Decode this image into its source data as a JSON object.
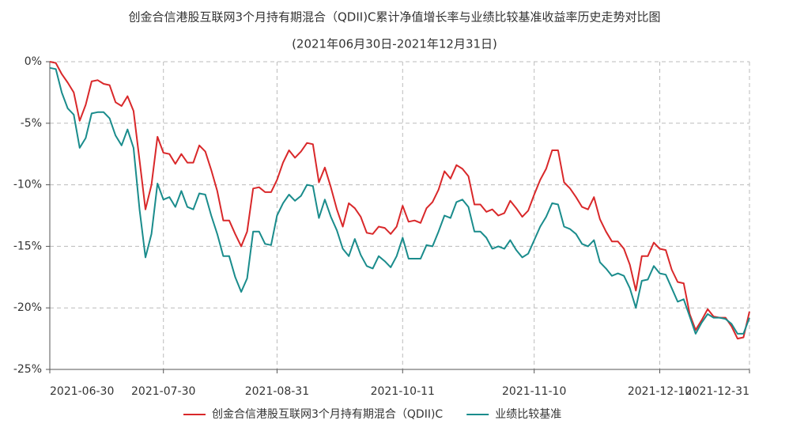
{
  "chart_data": {
    "type": "line",
    "title": "创金合信港股互联网3个月持有期混合（QDII)C累计净值增长率与业绩比较基准收益率历史走势对比图",
    "subtitle": "(2021年06月30日-2021年12月31日)",
    "categories": [
      "2021-06-30",
      null,
      null,
      null,
      null,
      null,
      null,
      null,
      null,
      null,
      null,
      null,
      null,
      null,
      null,
      null,
      null,
      null,
      null,
      "2021-07-30",
      null,
      null,
      null,
      null,
      null,
      null,
      null,
      null,
      null,
      null,
      null,
      null,
      null,
      null,
      null,
      null,
      null,
      null,
      "2021-08-31",
      null,
      null,
      null,
      null,
      null,
      null,
      null,
      null,
      null,
      null,
      null,
      null,
      null,
      null,
      null,
      null,
      null,
      null,
      null,
      null,
      "2021-10-11",
      null,
      null,
      null,
      null,
      null,
      null,
      null,
      null,
      null,
      null,
      null,
      null,
      null,
      null,
      null,
      null,
      null,
      null,
      null,
      null,
      null,
      "2021-11-10",
      null,
      null,
      null,
      null,
      null,
      null,
      null,
      null,
      null,
      null,
      null,
      null,
      null,
      null,
      null,
      null,
      null,
      null,
      null,
      null,
      "2021-12-10",
      null,
      null,
      null,
      null,
      null,
      null,
      null,
      null,
      null,
      null,
      null,
      null,
      null,
      null,
      "2021-12-31"
    ],
    "series": [
      {
        "name": "创金合信港股互联网3个月持有期混合（QDII)C",
        "color": "#d9282a",
        "values": [
          0,
          -0.1,
          -1,
          -1.7,
          -2.5,
          -4.8,
          -3.5,
          -1.6,
          -1.5,
          -1.8,
          -1.9,
          -3.3,
          -3.6,
          -2.8,
          -4,
          -8,
          -12,
          -10,
          -6.1,
          -7.4,
          -7.5,
          -8.3,
          -7.5,
          -8.2,
          -8.2,
          -6.8,
          -7.3,
          -8.8,
          -10.5,
          -12.9,
          -12.9,
          -14,
          -15,
          -13.8,
          -10.3,
          -10.2,
          -10.6,
          -10.6,
          -9.6,
          -8.2,
          -7.2,
          -7.8,
          -7.3,
          -6.6,
          -6.7,
          -9.8,
          -8.6,
          -10.2,
          -12,
          -13.4,
          -11.5,
          -11.9,
          -12.6,
          -13.9,
          -14,
          -13.4,
          -13.5,
          -14,
          -13.4,
          -11.7,
          -13,
          -12.9,
          -13.1,
          -11.9,
          -11.4,
          -10.4,
          -8.9,
          -9.5,
          -8.4,
          -8.7,
          -9.3,
          -11.6,
          -11.6,
          -12.2,
          -12,
          -12.5,
          -12.3,
          -11.3,
          -11.9,
          -12.6,
          -12.1,
          -10.8,
          -9.6,
          -8.7,
          -7.2,
          -7.2,
          -9.8,
          -10.3,
          -11,
          -11.8,
          -12,
          -11,
          -12.8,
          -13.8,
          -14.6,
          -14.6,
          -15.2,
          -16.5,
          -18.6,
          -15.8,
          -15.8,
          -14.7,
          -15.2,
          -15.3,
          -16.9,
          -17.9,
          -18,
          -20.5,
          -21.8,
          -21,
          -20.1,
          -20.7,
          -20.8,
          -20.8,
          -21.5,
          -22.5,
          -22.4,
          -20.3
        ]
      },
      {
        "name": "业绩比较基准",
        "color": "#1a8c8c",
        "values": [
          -0.5,
          -0.6,
          -2.5,
          -3.8,
          -4.3,
          -7,
          -6.2,
          -4.2,
          -4.1,
          -4.1,
          -4.6,
          -6,
          -6.8,
          -5.5,
          -7,
          -12,
          -15.9,
          -14,
          -9.9,
          -11.2,
          -11,
          -11.8,
          -10.5,
          -11.8,
          -12,
          -10.7,
          -10.8,
          -12.5,
          -14,
          -15.8,
          -15.8,
          -17.5,
          -18.7,
          -17.6,
          -13.8,
          -13.8,
          -14.8,
          -14.9,
          -12.5,
          -11.5,
          -10.8,
          -11.3,
          -10.9,
          -10,
          -10.1,
          -12.7,
          -11.2,
          -12.6,
          -13.7,
          -15.2,
          -15.8,
          -14.4,
          -15.7,
          -16.6,
          -16.8,
          -15.8,
          -16.2,
          -16.7,
          -15.8,
          -14.3,
          -16,
          -16,
          -16,
          -14.9,
          -15,
          -13.8,
          -12.5,
          -12.7,
          -11.4,
          -11.2,
          -11.8,
          -13.8,
          -13.8,
          -14.3,
          -15.2,
          -15,
          -15.2,
          -14.5,
          -15.3,
          -15.9,
          -15.6,
          -14.5,
          -13.4,
          -12.6,
          -11.5,
          -11.6,
          -13.4,
          -13.6,
          -14,
          -14.8,
          -15,
          -14.5,
          -16.3,
          -16.8,
          -17.4,
          -17.2,
          -17.4,
          -18.4,
          -20,
          -17.8,
          -17.7,
          -16.6,
          -17.2,
          -17.3,
          -18.4,
          -19.5,
          -19.3,
          -20.7,
          -22.1,
          -21.2,
          -20.5,
          -20.8,
          -20.8,
          -20.9,
          -21.3,
          -22.1,
          -22.1,
          -20.8
        ]
      }
    ],
    "ylim": [
      -25,
      0
    ],
    "yticks": [
      {
        "value": 0,
        "label": "0%"
      },
      {
        "value": -5,
        "label": "-5%"
      },
      {
        "value": -10,
        "label": "-10%"
      },
      {
        "value": -15,
        "label": "-15%"
      },
      {
        "value": -20,
        "label": "-20%"
      },
      {
        "value": -25,
        "label": "-25%"
      }
    ],
    "grid": true,
    "legend": "bottom"
  }
}
